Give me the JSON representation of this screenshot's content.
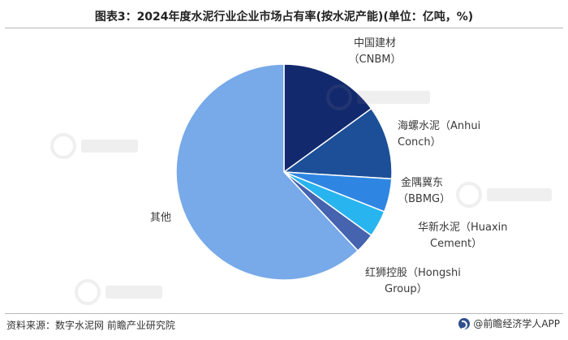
{
  "title": "图表3：2024年度水泥行业企业市场占有率(按水泥产能)(单位：亿吨，%)",
  "chart_data": {
    "type": "pie",
    "slices": [
      {
        "name": "中国建材",
        "sub": "（CNBM）",
        "value": 15.0,
        "color": "#13296e"
      },
      {
        "name": "海螺水泥（Anhui",
        "sub": "Conch）",
        "value": 11.0,
        "color": "#1c4f97"
      },
      {
        "name": "金隅冀东",
        "sub": "（BBMG）",
        "value": 5.0,
        "color": "#2f86e2"
      },
      {
        "name": "华新水泥（Huaxin",
        "sub": "Cement）",
        "value": 4.0,
        "color": "#28b4ef"
      },
      {
        "name": "红狮控股（Hongshi",
        "sub": "Group）",
        "value": 3.0,
        "color": "#4563ae"
      },
      {
        "name": "其他",
        "sub": "",
        "value": 62.0,
        "color": "#78a9e8"
      }
    ],
    "start_angle": 0,
    "direction": "clockwise"
  },
  "footer": {
    "source": "资料来源：数字水泥网 前瞻产业研究院",
    "brand": "@前瞻经济学人APP"
  }
}
